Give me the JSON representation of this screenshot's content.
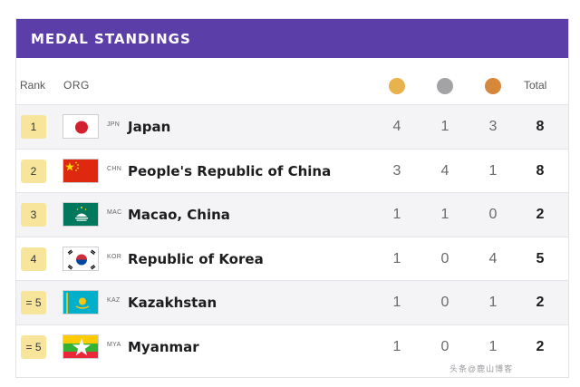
{
  "header": {
    "title": "MEDAL STANDINGS"
  },
  "columns": {
    "rank": "Rank",
    "org": "ORG",
    "total": "Total"
  },
  "medal_colors": {
    "gold": "#e8b24c",
    "silver": "#a3a3a6",
    "bronze": "#d5873b"
  },
  "rows": [
    {
      "rank": "1",
      "code": "JPN",
      "name": "Japan",
      "gold": "4",
      "silver": "1",
      "bronze": "3",
      "total": "8",
      "flag": "japan-flag-icon"
    },
    {
      "rank": "2",
      "code": "CHN",
      "name": "People's Republic of China",
      "gold": "3",
      "silver": "4",
      "bronze": "1",
      "total": "8",
      "flag": "china-flag-icon"
    },
    {
      "rank": "3",
      "code": "MAC",
      "name": "Macao, China",
      "gold": "1",
      "silver": "1",
      "bronze": "0",
      "total": "2",
      "flag": "macao-flag-icon"
    },
    {
      "rank": "4",
      "code": "KOR",
      "name": "Republic of Korea",
      "gold": "1",
      "silver": "0",
      "bronze": "4",
      "total": "5",
      "flag": "korea-flag-icon"
    },
    {
      "rank": "= 5",
      "code": "KAZ",
      "name": "Kazakhstan",
      "gold": "1",
      "silver": "0",
      "bronze": "1",
      "total": "2",
      "flag": "kazakhstan-flag-icon"
    },
    {
      "rank": "= 5",
      "code": "MYA",
      "name": "Myanmar",
      "gold": "1",
      "silver": "0",
      "bronze": "1",
      "total": "2",
      "flag": "myanmar-flag-icon"
    }
  ],
  "watermark": "头条@鹿山博客"
}
